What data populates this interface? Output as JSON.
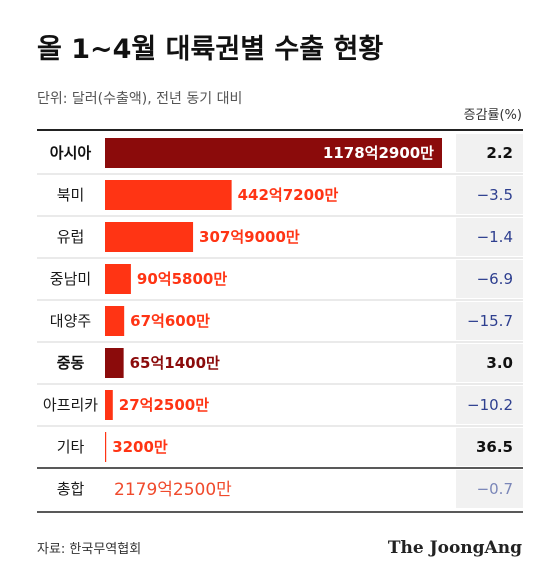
{
  "chart_data": {
    "type": "bar",
    "orientation": "horizontal",
    "title": "올 1~4월 대륙권별 수출 현황",
    "unit_note": "단위: 달러(수출액), 전년 동기 대비",
    "rate_header": "증감률(%)",
    "categories": [
      "아시아",
      "북미",
      "유럽",
      "중남미",
      "대양주",
      "중동",
      "아프리카",
      "기타"
    ],
    "values": [
      1178.29,
      442.72,
      307.9,
      90.58,
      67.06,
      65.14,
      27.25,
      0.32
    ],
    "value_labels": [
      "1178억2900만",
      "442억7200만",
      "307억9000만",
      "90억5800만",
      "67억600만",
      "65억1400만",
      "27억2500만",
      "3200만"
    ],
    "change_rates": [
      "2.2",
      "-3.5",
      "-1.4",
      "-6.9",
      "-15.7",
      "3.0",
      "-10.2",
      "36.5"
    ],
    "highlight": [
      true,
      false,
      false,
      false,
      false,
      true,
      false,
      false
    ],
    "total": {
      "label": "총합",
      "value_label": "2179억2500만",
      "change_rate": "-0.7"
    },
    "source": "자료: 한국무역협회",
    "brand": "The JoongAng",
    "colors": {
      "highlight_bar": "#8b0b0b",
      "bar": "#ff3414",
      "positive_rate": "#111111",
      "negative_rate": "#2e3f8f",
      "total_value": "#f04a2c",
      "total_rate": "#7a86b8"
    }
  }
}
